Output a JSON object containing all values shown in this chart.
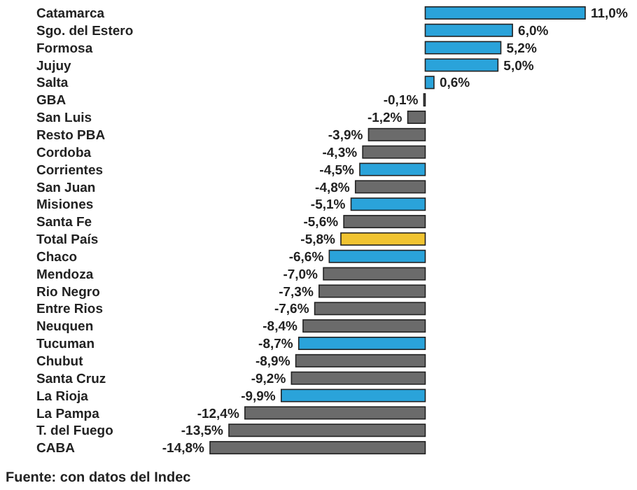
{
  "chart_data": {
    "type": "bar",
    "orientation": "horizontal",
    "categories": [
      "Catamarca",
      "Sgo. del Estero",
      "Formosa",
      "Jujuy",
      "Salta",
      "GBA",
      "San Luis",
      "Resto PBA",
      "Cordoba",
      "Corrientes",
      "San Juan",
      "Misiones",
      "Santa Fe",
      "Total País",
      "Chaco",
      "Mendoza",
      "Rio Negro",
      "Entre Rios",
      "Neuquen",
      "Tucuman",
      "Chubut",
      "Santa Cruz",
      "La Rioja",
      "La Pampa",
      "T. del Fuego",
      "CABA"
    ],
    "values": [
      11.0,
      6.0,
      5.2,
      5.0,
      0.6,
      -0.1,
      -1.2,
      -3.9,
      -4.3,
      -4.5,
      -4.8,
      -5.1,
      -5.6,
      -5.8,
      -6.6,
      -7.0,
      -7.3,
      -7.6,
      -8.4,
      -8.7,
      -8.9,
      -9.2,
      -9.9,
      -12.4,
      -13.5,
      -14.8
    ],
    "colors": [
      "#2aa3da",
      "#2aa3da",
      "#2aa3da",
      "#2aa3da",
      "#2aa3da",
      "#6b6b6b",
      "#6b6b6b",
      "#6b6b6b",
      "#6b6b6b",
      "#2aa3da",
      "#6b6b6b",
      "#2aa3da",
      "#6b6b6b",
      "#f0c330",
      "#2aa3da",
      "#6b6b6b",
      "#6b6b6b",
      "#6b6b6b",
      "#6b6b6b",
      "#2aa3da",
      "#6b6b6b",
      "#6b6b6b",
      "#2aa3da",
      "#6b6b6b",
      "#6b6b6b",
      "#6b6b6b"
    ],
    "value_labels": [
      "11,0%",
      "6,0%",
      "5,2%",
      "5,0%",
      "0,6%",
      "-0,1%",
      "-1,2%",
      "-3,9%",
      "-4,3%",
      "-4,5%",
      "-4,8%",
      "-5,1%",
      "-5,6%",
      "-5,8%",
      "-6,6%",
      "-7,0%",
      "-7,3%",
      "-7,6%",
      "-8,4%",
      "-8,7%",
      "-8,9%",
      "-9,2%",
      "-9,9%",
      "-12,4%",
      "-13,5%",
      "-14,8%"
    ],
    "annotations": [
      "Fuente: con datos del Indec"
    ]
  }
}
